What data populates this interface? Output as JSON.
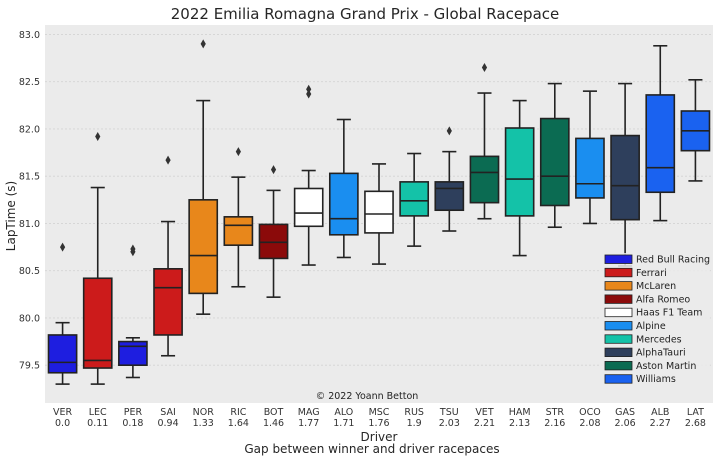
{
  "chart_data": {
    "type": "box",
    "title": "2022 Emilia Romagna Grand Prix - Global Racepace",
    "xlabel": "Driver",
    "xlabel2": "Gap between winner and driver racepaces",
    "ylabel": "LapTime (s)",
    "ylim": [
      79.1,
      83.1
    ],
    "yticks": [
      "79.5",
      "80.0",
      "80.5",
      "81.0",
      "81.5",
      "82.0",
      "82.5",
      "83.0"
    ],
    "grid": true,
    "legend_position": "lower-right",
    "credit": "© 2022 Yoann Betton",
    "teams": [
      {
        "name": "Red Bull Racing",
        "color": "#1e1ee0"
      },
      {
        "name": "Ferrari",
        "color": "#cc1b1b"
      },
      {
        "name": "McLaren",
        "color": "#e8871b"
      },
      {
        "name": "Alfa Romeo",
        "color": "#8b0a0a"
      },
      {
        "name": "Haas F1 Team",
        "color": "#ffffff"
      },
      {
        "name": "Alpine",
        "color": "#1a8ef0"
      },
      {
        "name": "Mercedes",
        "color": "#14c2a8"
      },
      {
        "name": "AlphaTauri",
        "color": "#2e3f5c"
      },
      {
        "name": "Aston Martin",
        "color": "#0b6b52"
      },
      {
        "name": "Williams",
        "color": "#1a62f0"
      }
    ],
    "drivers": [
      {
        "code": "VER",
        "gap": "0.0",
        "team": 0,
        "min": 79.3,
        "q1": 79.42,
        "median": 79.53,
        "q3": 79.82,
        "max": 79.95,
        "outliers": [
          80.75
        ]
      },
      {
        "code": "LEC",
        "gap": "0.11",
        "team": 1,
        "min": 79.3,
        "q1": 79.47,
        "median": 79.55,
        "q3": 80.42,
        "max": 81.38,
        "outliers": [
          81.92
        ]
      },
      {
        "code": "PER",
        "gap": "0.18",
        "team": 0,
        "min": 79.37,
        "q1": 79.5,
        "median": 79.7,
        "q3": 79.75,
        "max": 79.79,
        "outliers": [
          80.7,
          80.73
        ]
      },
      {
        "code": "SAI",
        "gap": "0.94",
        "team": 1,
        "min": 79.6,
        "q1": 79.82,
        "median": 80.32,
        "q3": 80.52,
        "max": 81.02,
        "outliers": [
          81.67
        ]
      },
      {
        "code": "NOR",
        "gap": "1.33",
        "team": 2,
        "min": 80.04,
        "q1": 80.26,
        "median": 80.66,
        "q3": 81.25,
        "max": 82.3,
        "outliers": [
          82.9
        ]
      },
      {
        "code": "RIC",
        "gap": "1.64",
        "team": 2,
        "min": 80.33,
        "q1": 80.77,
        "median": 80.98,
        "q3": 81.07,
        "max": 81.49,
        "outliers": [
          81.76
        ]
      },
      {
        "code": "BOT",
        "gap": "1.46",
        "team": 3,
        "min": 80.22,
        "q1": 80.63,
        "median": 80.8,
        "q3": 80.99,
        "max": 81.35,
        "outliers": [
          81.57
        ]
      },
      {
        "code": "MAG",
        "gap": "1.77",
        "team": 4,
        "min": 80.56,
        "q1": 80.97,
        "median": 81.11,
        "q3": 81.37,
        "max": 81.56,
        "outliers": [
          82.37,
          82.42
        ]
      },
      {
        "code": "ALO",
        "gap": "1.71",
        "team": 5,
        "min": 80.64,
        "q1": 80.88,
        "median": 81.05,
        "q3": 81.53,
        "max": 82.1,
        "outliers": []
      },
      {
        "code": "MSC",
        "gap": "1.76",
        "team": 4,
        "min": 80.57,
        "q1": 80.9,
        "median": 81.1,
        "q3": 81.34,
        "max": 81.63,
        "outliers": []
      },
      {
        "code": "RUS",
        "gap": "1.9",
        "team": 6,
        "min": 80.76,
        "q1": 81.08,
        "median": 81.24,
        "q3": 81.44,
        "max": 81.74,
        "outliers": []
      },
      {
        "code": "TSU",
        "gap": "2.03",
        "team": 7,
        "min": 80.92,
        "q1": 81.14,
        "median": 81.37,
        "q3": 81.44,
        "max": 81.76,
        "outliers": [
          81.98
        ]
      },
      {
        "code": "VET",
        "gap": "2.21",
        "team": 8,
        "min": 81.05,
        "q1": 81.22,
        "median": 81.54,
        "q3": 81.71,
        "max": 82.38,
        "outliers": [
          82.65
        ]
      },
      {
        "code": "HAM",
        "gap": "2.13",
        "team": 6,
        "min": 80.66,
        "q1": 81.08,
        "median": 81.47,
        "q3": 82.01,
        "max": 82.3,
        "outliers": []
      },
      {
        "code": "STR",
        "gap": "2.16",
        "team": 8,
        "min": 80.96,
        "q1": 81.19,
        "median": 81.5,
        "q3": 82.11,
        "max": 82.48,
        "outliers": []
      },
      {
        "code": "OCO",
        "gap": "2.08",
        "team": 5,
        "min": 81.0,
        "q1": 81.27,
        "median": 81.42,
        "q3": 81.9,
        "max": 82.4,
        "outliers": []
      },
      {
        "code": "GAS",
        "gap": "2.06",
        "team": 7,
        "min": 80.55,
        "q1": 81.04,
        "median": 81.4,
        "q3": 81.93,
        "max": 82.48,
        "outliers": []
      },
      {
        "code": "ALB",
        "gap": "2.27",
        "team": 9,
        "min": 81.03,
        "q1": 81.33,
        "median": 81.59,
        "q3": 82.36,
        "max": 82.88,
        "outliers": []
      },
      {
        "code": "LAT",
        "gap": "2.68",
        "team": 9,
        "min": 81.45,
        "q1": 81.77,
        "median": 81.98,
        "q3": 82.19,
        "max": 82.52,
        "outliers": []
      }
    ]
  }
}
